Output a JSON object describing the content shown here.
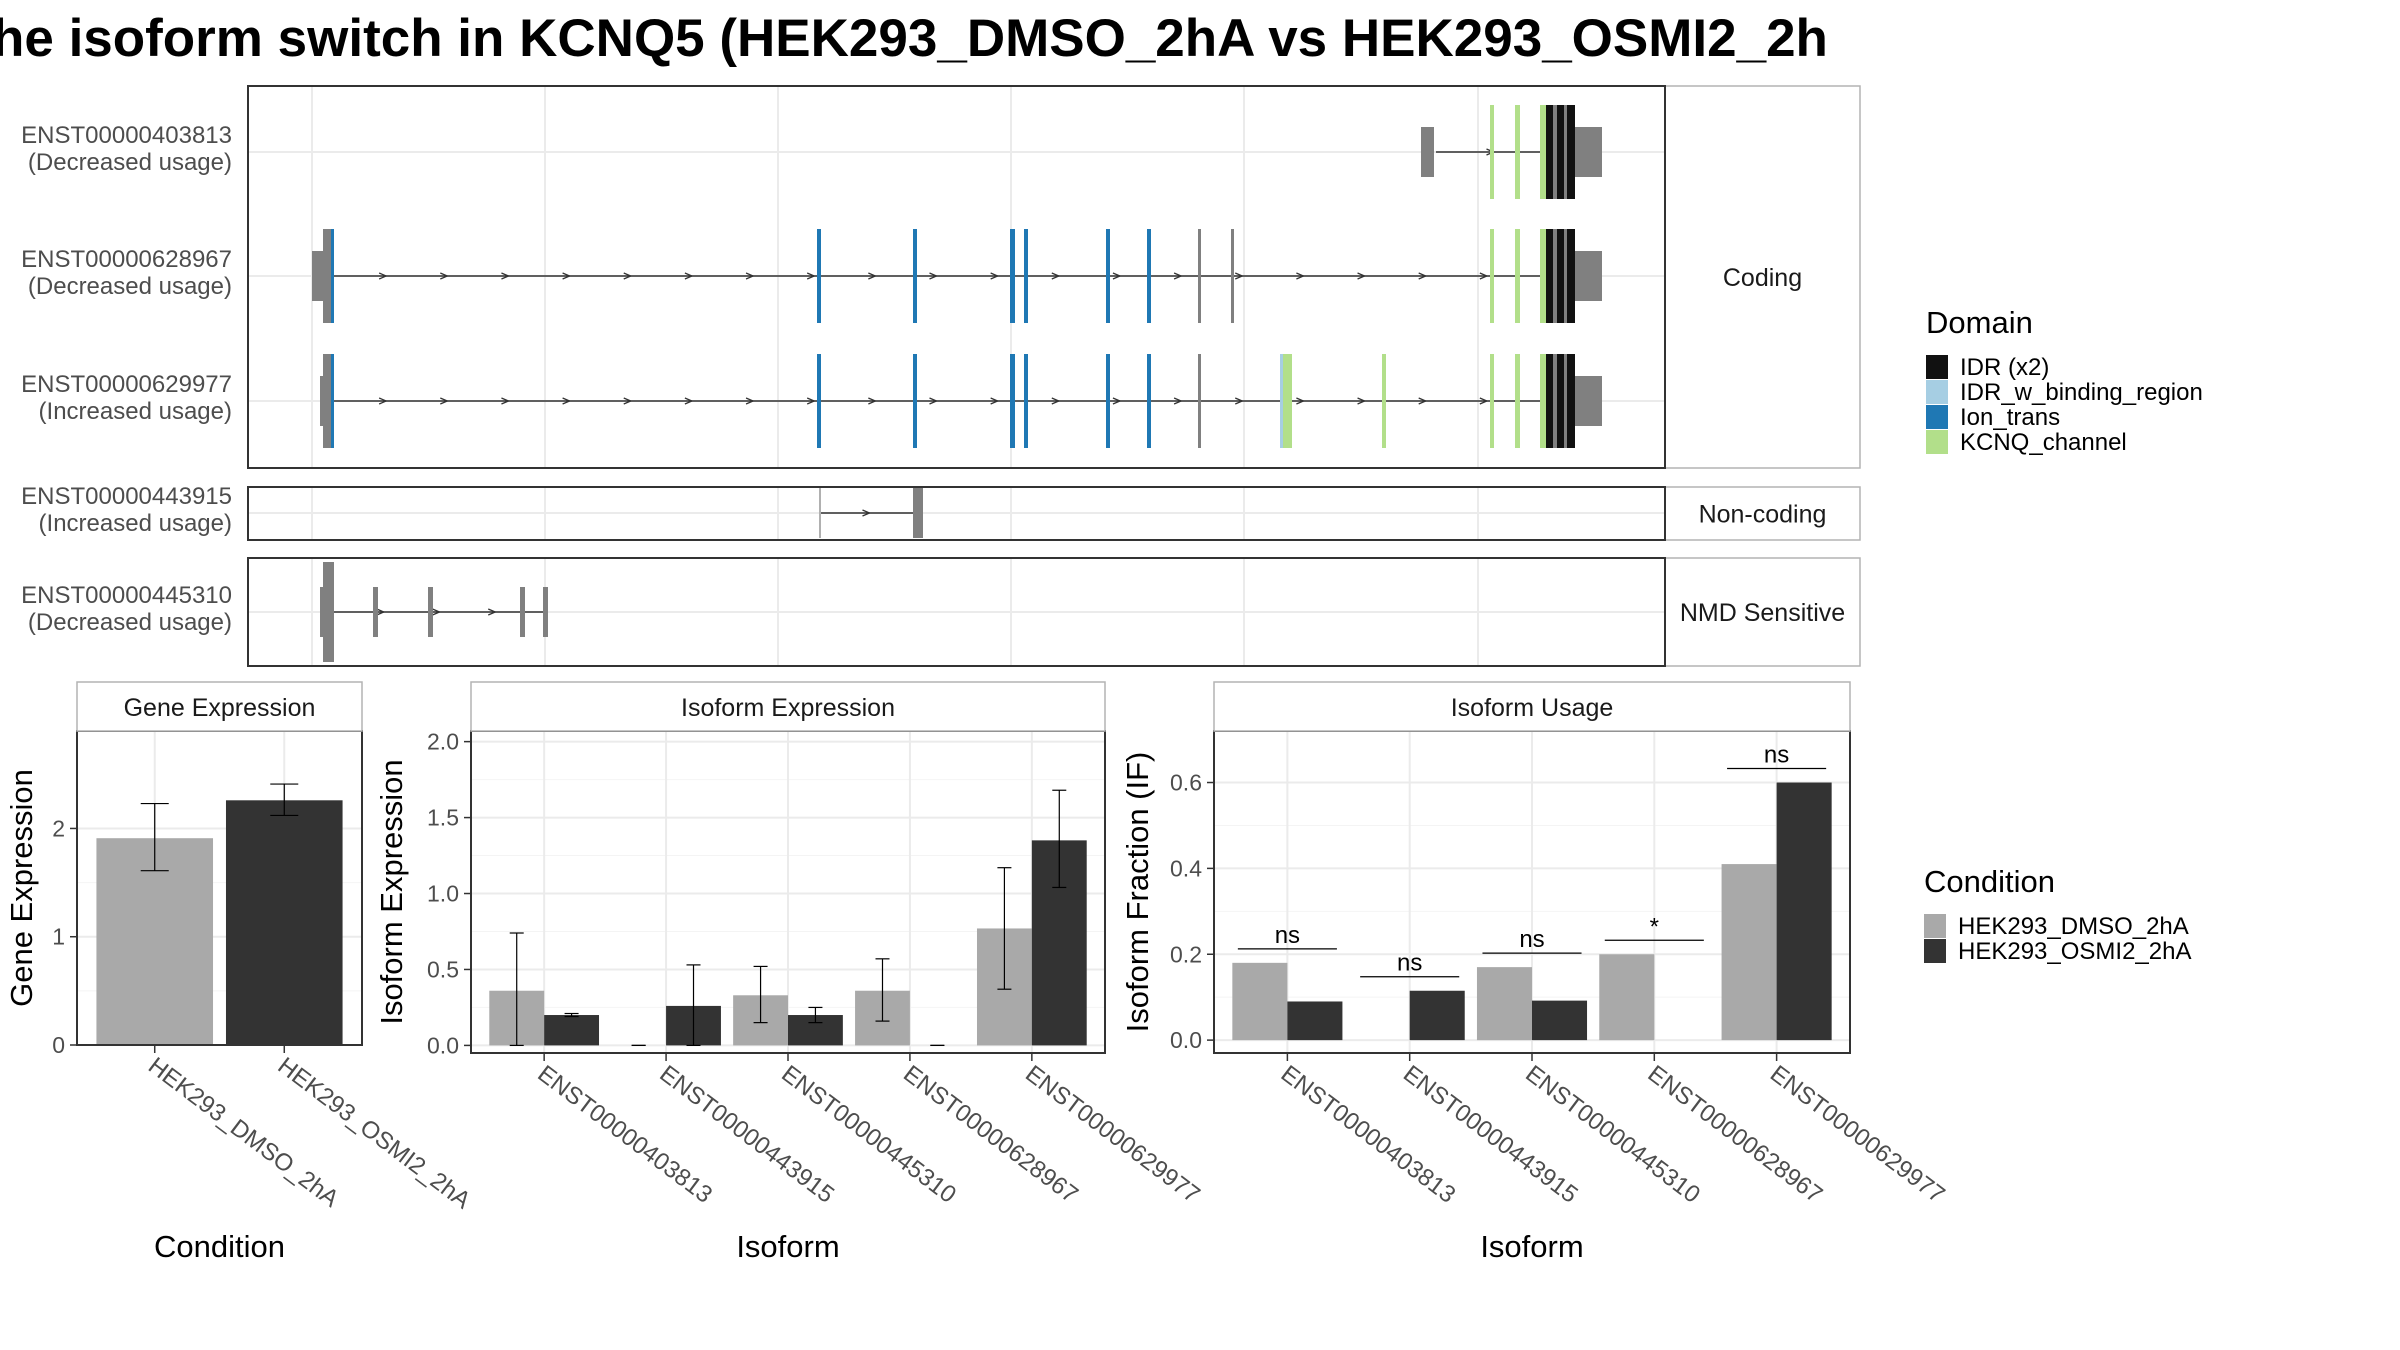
{
  "title": "he isoform switch in KCNQ5 (HEK293_DMSO_2hA vs HEK293_OSMI2_2h",
  "colors": {
    "dmso": "#a9a9a9",
    "osmi": "#333333",
    "exon": "#808080",
    "idr": "#111111",
    "idr_binding": "#a6cee3",
    "ion_trans": "#1f78b4",
    "kcnq": "#b2df8a"
  },
  "domain_legend": {
    "title": "Domain",
    "items": [
      {
        "label": "IDR (x2)",
        "color": "#111111"
      },
      {
        "label": "IDR_w_binding_region",
        "color": "#a6cee3"
      },
      {
        "label": "Ion_trans",
        "color": "#1f78b4"
      },
      {
        "label": "KCNQ_channel",
        "color": "#b2df8a"
      }
    ]
  },
  "condition_legend": {
    "title": "Condition",
    "items": [
      {
        "label": "HEK293_DMSO_2hA",
        "color": "#a9a9a9"
      },
      {
        "label": "HEK293_OSMI2_2hA",
        "color": "#333333"
      }
    ]
  },
  "transcript_panels": [
    {
      "strip": "Coding",
      "rows": [
        {
          "id": "ENST00000403813",
          "usage": "(Decreased usage)"
        },
        {
          "id": "ENST00000628967",
          "usage": "(Decreased usage)"
        },
        {
          "id": "ENST00000629977",
          "usage": "(Increased usage)"
        }
      ]
    },
    {
      "strip": "Non-coding",
      "rows": [
        {
          "id": "ENST00000443915",
          "usage": "(Increased usage)"
        }
      ]
    },
    {
      "strip": "NMD Sensitive",
      "rows": [
        {
          "id": "ENST00000445310",
          "usage": "(Decreased usage)"
        }
      ]
    }
  ],
  "chart_data": [
    {
      "type": "bar",
      "title": "Gene Expression",
      "xlabel": "Condition",
      "ylabel": "Gene Expression",
      "categories": [
        "HEK293_DMSO_2hA",
        "HEK293_OSMI2_2hA"
      ],
      "values": [
        1.91,
        2.26
      ],
      "error_low": [
        1.61,
        2.12
      ],
      "error_high": [
        2.23,
        2.41
      ],
      "ylim": [
        0,
        2.9
      ],
      "yticks": [
        0,
        1,
        2
      ],
      "grid": true
    },
    {
      "type": "bar",
      "title": "Isoform Expression",
      "xlabel": "Isoform",
      "ylabel": "Isoform Expression",
      "categories": [
        "ENST00000403813",
        "ENST00000443915",
        "ENST00000445310",
        "ENST00000628967",
        "ENST00000629977"
      ],
      "series": [
        {
          "name": "HEK293_DMSO_2hA",
          "values": [
            0.36,
            0.0,
            0.33,
            0.36,
            0.77
          ],
          "error_low": [
            0.0,
            0.0,
            0.15,
            0.16,
            0.37
          ],
          "error_high": [
            0.74,
            0.0,
            0.52,
            0.57,
            1.17
          ]
        },
        {
          "name": "HEK293_OSMI2_2hA",
          "values": [
            0.2,
            0.26,
            0.2,
            0.0,
            1.35
          ],
          "error_low": [
            0.19,
            0.0,
            0.15,
            0.0,
            1.04
          ],
          "error_high": [
            0.21,
            0.53,
            0.25,
            0.0,
            1.68
          ]
        }
      ],
      "ylim": [
        -0.05,
        2.07
      ],
      "yticks": [
        "0.0",
        "0.5",
        "1.0",
        "1.5",
        "2.0"
      ],
      "grid": true
    },
    {
      "type": "bar",
      "title": "Isoform Usage",
      "xlabel": "Isoform",
      "ylabel": "Isoform Fraction (IF)",
      "categories": [
        "ENST00000403813",
        "ENST00000443915",
        "ENST00000445310",
        "ENST00000628967",
        "ENST00000629977"
      ],
      "series": [
        {
          "name": "HEK293_DMSO_2hA",
          "values": [
            0.18,
            0.0,
            0.17,
            0.2,
            0.41
          ]
        },
        {
          "name": "HEK293_OSMI2_2hA",
          "values": [
            0.09,
            0.115,
            0.092,
            0.0,
            0.6
          ]
        }
      ],
      "annotations": [
        "ns",
        "ns",
        "ns",
        "*",
        "ns"
      ],
      "ylim": [
        -0.03,
        0.72
      ],
      "yticks": [
        "0.0",
        "0.2",
        "0.4",
        "0.6"
      ],
      "grid": true
    }
  ]
}
